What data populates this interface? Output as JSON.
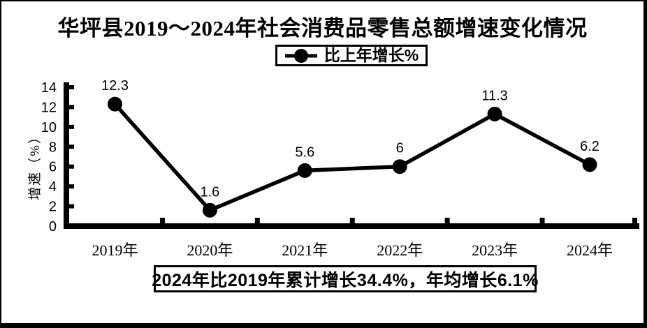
{
  "page": {
    "background": "#ffffff",
    "border_color": "#000000"
  },
  "title": {
    "text": "华坪县2019～2024年社会消费品零售总额增速变化情况"
  },
  "legend": {
    "label": "比上年增长%",
    "marker": "filled-circle-on-line",
    "color": "#000000"
  },
  "y_axis": {
    "title": "增速（%）",
    "min": 0,
    "max": 14
  },
  "x_axis": {
    "labels": [
      "2019年",
      "2020年",
      "2021年",
      "2022年",
      "2023年",
      "2024年"
    ]
  },
  "annotation": {
    "text": "2024年比2019年累计增长34.4%，年均增长6.1%"
  },
  "chart_data": {
    "type": "line",
    "title": "华坪县2019～2024年社会消费品零售总额增速变化情况",
    "categories": [
      "2019年",
      "2020年",
      "2021年",
      "2022年",
      "2023年",
      "2024年"
    ],
    "series": [
      {
        "name": "比上年增长%",
        "values": [
          12.3,
          1.6,
          5.6,
          6,
          11.3,
          6.2
        ],
        "color": "#000000",
        "marker": "circle"
      }
    ],
    "data_labels": [
      "12.3",
      "1.6",
      "5.6",
      "6",
      "11.3",
      "6.2"
    ],
    "xlabel": "",
    "ylabel": "增速（%）",
    "ylim": [
      0,
      14
    ],
    "yticks": [
      0,
      2,
      4,
      6,
      8,
      10,
      12,
      14
    ],
    "grid": false,
    "legend_position": "top",
    "annotation": "2024年比2019年累计增长34.4%，年均增长6.1%"
  }
}
